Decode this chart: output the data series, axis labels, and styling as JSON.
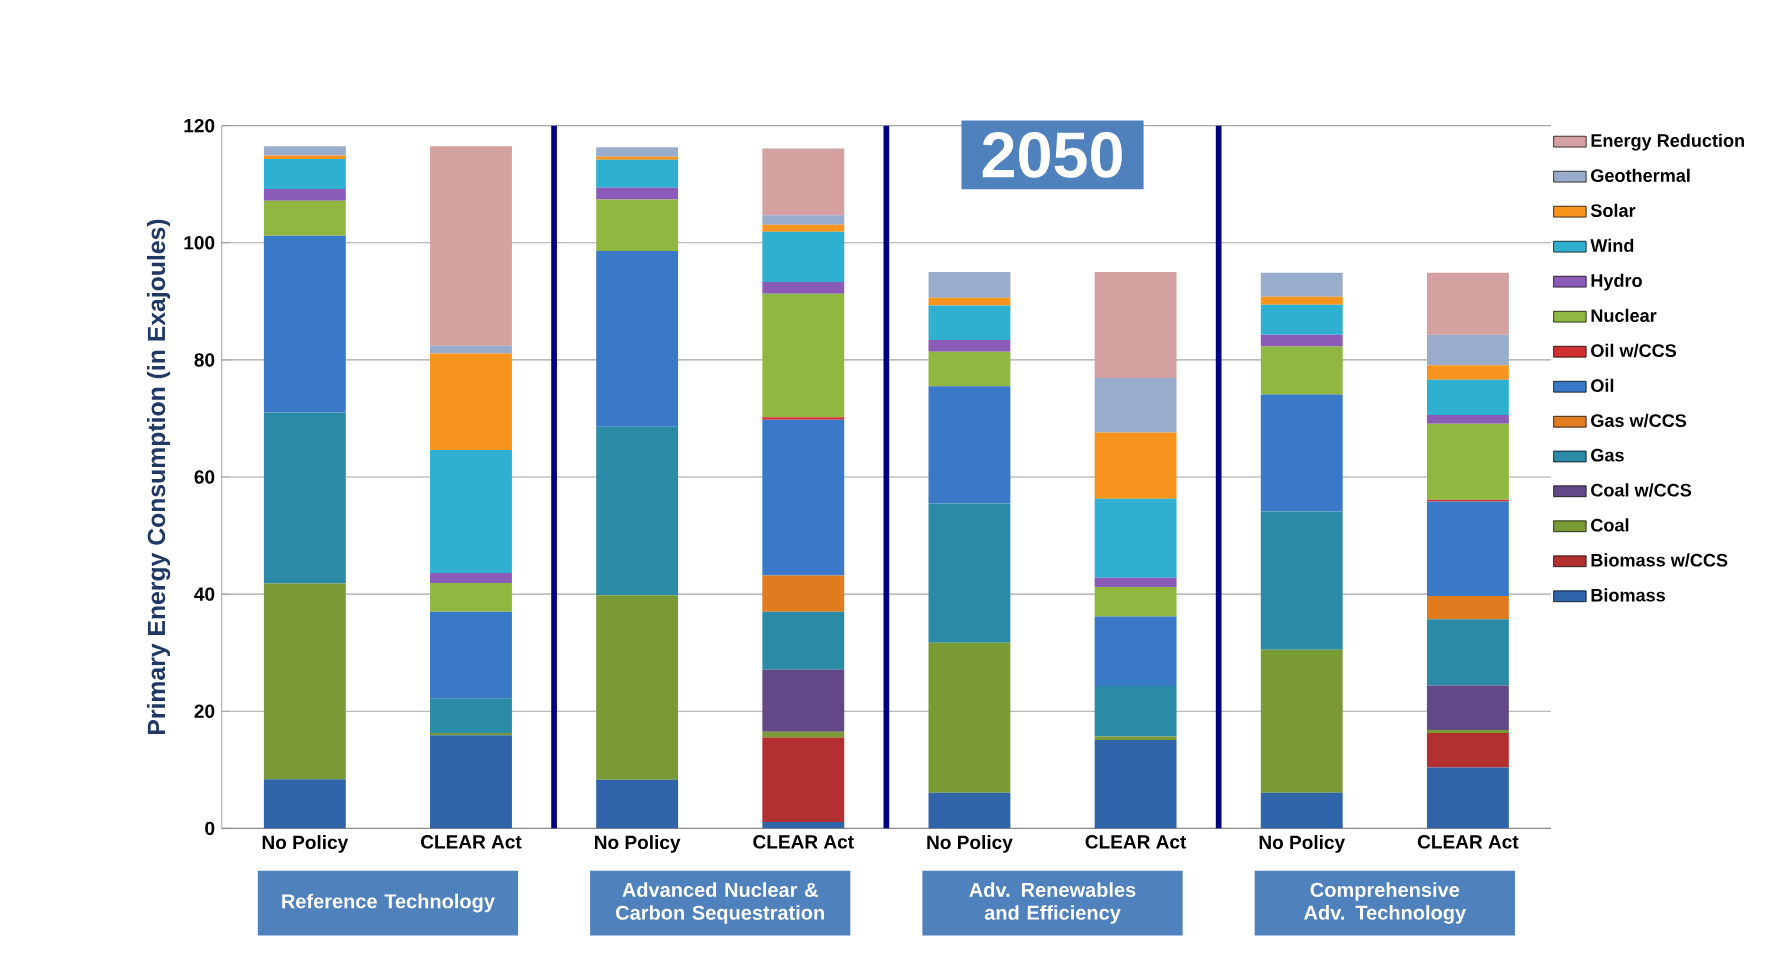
{
  "chart_data": {
    "type": "bar",
    "stacked": true,
    "ylabel": "Primary Energy Consumption (in Exajoules)",
    "categories": [
      "No Policy",
      "CLEAR Act",
      "No Policy",
      "CLEAR Act",
      "No Policy",
      "CLEAR Act",
      "No Policy",
      "CLEAR Act"
    ],
    "ylim": [
      0,
      120
    ],
    "yticks": [
      0,
      20,
      40,
      60,
      80,
      100,
      120
    ],
    "grid": "y",
    "legend": "right",
    "series": [
      {
        "name": "Biomass",
        "color": "#2f64a8",
        "values": [
          8.4,
          15.9,
          8.3,
          1.1,
          6.1,
          15.1,
          6.1,
          10.4
        ]
      },
      {
        "name": "Biomass w/CCS",
        "color": "#b23030",
        "values": [
          0,
          0,
          0,
          14.4,
          0,
          0,
          0,
          5.9
        ]
      },
      {
        "name": "Coal",
        "color": "#7a9a35",
        "values": [
          33.4,
          0.4,
          31.5,
          1.0,
          25.6,
          0.6,
          24.4,
          0.5
        ]
      },
      {
        "name": "Coal w/CCS",
        "color": "#634888",
        "values": [
          0,
          0,
          0,
          10.6,
          0,
          0,
          0,
          7.6
        ]
      },
      {
        "name": "Gas",
        "color": "#2b8ba6",
        "values": [
          29.2,
          5.9,
          28.8,
          9.9,
          23.8,
          8.6,
          23.6,
          11.3
        ]
      },
      {
        "name": "Gas w/CCS",
        "color": "#e07b20",
        "values": [
          0,
          0,
          0,
          6.2,
          0,
          0,
          0,
          4.0
        ]
      },
      {
        "name": "Oil",
        "color": "#3a78c8",
        "values": [
          30.2,
          14.8,
          30.0,
          26.6,
          20.0,
          11.9,
          20.0,
          16.1
        ]
      },
      {
        "name": "Oil w/CCS",
        "color": "#d03030",
        "values": [
          0,
          0,
          0,
          0.4,
          0,
          0,
          0,
          0.3
        ]
      },
      {
        "name": "Nuclear",
        "color": "#90b840",
        "values": [
          6.0,
          4.9,
          8.8,
          21.1,
          5.9,
          5.0,
          8.2,
          13.0
        ]
      },
      {
        "name": "Hydro",
        "color": "#8a5cb8",
        "values": [
          2.0,
          1.7,
          2.0,
          2.0,
          2.0,
          1.6,
          2.0,
          1.5
        ]
      },
      {
        "name": "Wind",
        "color": "#30b0d0",
        "values": [
          5.1,
          21.0,
          4.8,
          8.6,
          5.9,
          13.5,
          5.1,
          6.0
        ]
      },
      {
        "name": "Solar",
        "color": "#f7941d",
        "values": [
          0.6,
          16.5,
          0.5,
          1.2,
          1.3,
          11.3,
          1.4,
          2.5
        ]
      },
      {
        "name": "Geothermal",
        "color": "#9aaccc",
        "values": [
          1.6,
          1.3,
          1.6,
          1.6,
          4.4,
          9.3,
          4.1,
          5.2
        ]
      },
      {
        "name": "Energy Reduction",
        "color": "#d4a0a0",
        "values": [
          0,
          34.1,
          0,
          11.4,
          0,
          18.1,
          0,
          10.6
        ]
      }
    ],
    "annotations": [
      "2050",
      "Reference Technology",
      "Advanced Nuclear & Carbon Sequestration",
      "Adv. Renewables and Efficiency",
      "Comprehensive Adv. Technology"
    ]
  }
}
